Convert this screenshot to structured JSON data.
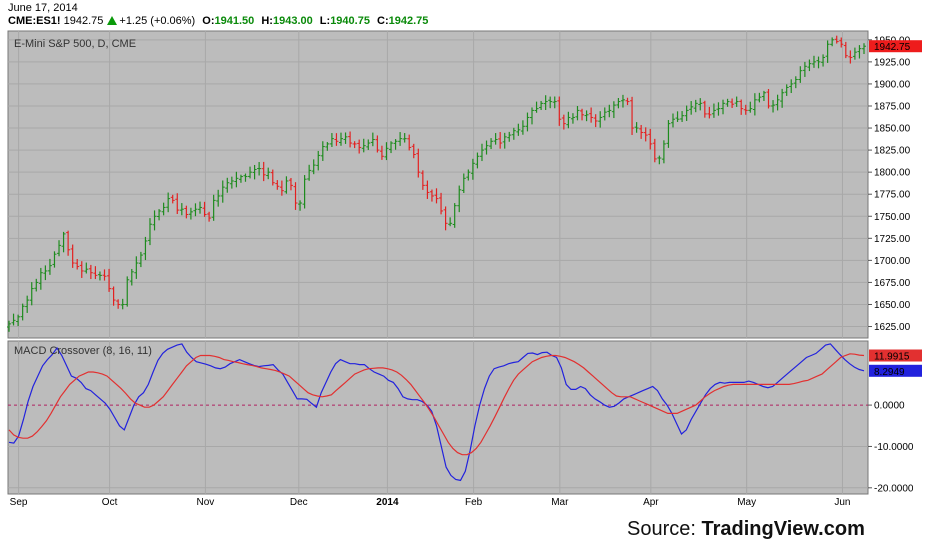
{
  "header": {
    "date": "June 17, 2014",
    "symbol": "CME:ES1!",
    "last": "1942.75",
    "change": "+1.25 (+0.06%)",
    "open_label": "O:",
    "open": "1941.50",
    "high_label": "H:",
    "high": "1943.00",
    "low_label": "L:",
    "low": "1940.75",
    "close_label": "C:",
    "close": "1942.75"
  },
  "source": {
    "prefix": "Source: ",
    "brand": "TradingView.com"
  },
  "colors": {
    "up": "#1e8b1e",
    "down": "#e32020",
    "macd": "#2222dd",
    "signal": "#e23030",
    "panel": "#bcbcbc",
    "grid": "#a8a8a8"
  },
  "chart_data": [
    {
      "type": "ohlc",
      "title": "E-Mini S&P 500, D, CME",
      "ylim": [
        1612,
        1960
      ],
      "y_ticks": [
        "1625.00",
        "1650.00",
        "1675.00",
        "1700.00",
        "1725.00",
        "1750.00",
        "1775.00",
        "1800.00",
        "1825.00",
        "1850.00",
        "1875.00",
        "1900.00",
        "1925.00",
        "1950.00"
      ],
      "last_value_label": "1942.75",
      "closes": [
        1628,
        1632,
        1636,
        1648,
        1655,
        1668,
        1675,
        1686,
        1688,
        1694,
        1707,
        1717,
        1730,
        1712,
        1697,
        1693,
        1688,
        1690,
        1686,
        1683,
        1683,
        1682,
        1668,
        1655,
        1650,
        1650,
        1678,
        1687,
        1697,
        1706,
        1722,
        1741,
        1750,
        1756,
        1760,
        1770,
        1768,
        1757,
        1758,
        1752,
        1755,
        1758,
        1760,
        1752,
        1748,
        1768,
        1773,
        1783,
        1788,
        1790,
        1793,
        1795,
        1795,
        1800,
        1803,
        1804,
        1797,
        1800,
        1788,
        1784,
        1779,
        1790,
        1785,
        1765,
        1765,
        1792,
        1802,
        1808,
        1819,
        1829,
        1832,
        1838,
        1835,
        1838,
        1840,
        1833,
        1832,
        1828,
        1830,
        1833,
        1837,
        1825,
        1818,
        1827,
        1833,
        1835,
        1838,
        1838,
        1828,
        1820,
        1800,
        1785,
        1777,
        1773,
        1770,
        1756,
        1742,
        1742,
        1762,
        1780,
        1793,
        1800,
        1810,
        1818,
        1825,
        1830,
        1835,
        1837,
        1833,
        1840,
        1842,
        1847,
        1848,
        1852,
        1862,
        1870,
        1872,
        1878,
        1880,
        1880,
        1880,
        1860,
        1855,
        1862,
        1862,
        1870,
        1865,
        1865,
        1862,
        1858,
        1862,
        1868,
        1870,
        1876,
        1880,
        1882,
        1880,
        1850,
        1850,
        1845,
        1842,
        1832,
        1815,
        1816,
        1832,
        1855,
        1860,
        1860,
        1864,
        1870,
        1874,
        1878,
        1878,
        1866,
        1865,
        1870,
        1872,
        1878,
        1880,
        1877,
        1880,
        1872,
        1870,
        1872,
        1882,
        1885,
        1890,
        1875,
        1876,
        1882,
        1890,
        1896,
        1900,
        1905,
        1915,
        1920,
        1923,
        1925,
        1925,
        1930,
        1945,
        1950,
        1948,
        1945,
        1932,
        1930,
        1936,
        1940,
        1942.75
      ],
      "notes": "Closes are read approximately from the price axis; bars are up (green) when the close is above the previous close, down (red) otherwise."
    },
    {
      "type": "line",
      "title": "MACD Crossover (8, 16, 11)",
      "ylim": [
        -21.5,
        15.5
      ],
      "y_ticks": [
        "-20.0000",
        "-10.0000",
        "0.0000"
      ],
      "zero_line": 0,
      "series": [
        {
          "label_value": "8.2949",
          "values": [
            -9,
            -9.2,
            -7.5,
            -3.5,
            1,
            4.5,
            7,
            9.5,
            11,
            12.2,
            13.8,
            12,
            9.5,
            7,
            6.5,
            5.5,
            4,
            3.5,
            2.5,
            1.5,
            0.5,
            -1,
            -3,
            -5,
            -6,
            -3,
            0,
            2,
            3,
            5,
            8,
            10.8,
            12.5,
            13.5,
            14,
            14.5,
            14.8,
            12.8,
            11.5,
            10.5,
            10.2,
            9.9,
            9.5,
            9,
            8.8,
            9.2,
            10,
            10.5,
            11,
            10.5,
            10,
            9.6,
            9.3,
            9.5,
            9.6,
            9.8,
            8.5,
            7.5,
            5.5,
            3.5,
            1.5,
            1.5,
            1.4,
            0.4,
            -0.5,
            3,
            5.5,
            8,
            10,
            11,
            10.5,
            10,
            10,
            9.8,
            9.8,
            8.8,
            8,
            7.5,
            7,
            6,
            5.5,
            4,
            2,
            1.5,
            1.3,
            1.3,
            0.9,
            0,
            -1.5,
            -5,
            -10,
            -15,
            -17,
            -18,
            -18.2,
            -16,
            -11,
            -5,
            0,
            4,
            7,
            8.8,
            9.2,
            9.5,
            10,
            10.3,
            10.5,
            11.5,
            12.5,
            12.6,
            12.2,
            12.7,
            12.8,
            12,
            11.5,
            9,
            5,
            3.8,
            3.8,
            4.5,
            4,
            2.5,
            1.5,
            0.8,
            0,
            -0.5,
            -0.3,
            0.5,
            1.5,
            2,
            2.5,
            3,
            3.5,
            4,
            4.5,
            3.5,
            1.5,
            0,
            -2,
            -4.5,
            -7,
            -6,
            -3.5,
            -1.5,
            0.5,
            2.5,
            4,
            5,
            5.5,
            5.3,
            5.5,
            5.5,
            5.5,
            5.5,
            5.8,
            5.5,
            5,
            4.5,
            4.2,
            4.5,
            5.5,
            6.5,
            7.5,
            8.5,
            9.5,
            10.5,
            11.5,
            12,
            12.5,
            13.5,
            14.5,
            14.8,
            13.5,
            12.2,
            11,
            10,
            9.2,
            8.6,
            8.2949
          ]
        },
        {
          "label_value": "11.9915",
          "values": [
            -6,
            -7.2,
            -7.8,
            -8,
            -8,
            -7.5,
            -6.5,
            -5.2,
            -3.8,
            -2,
            0,
            2,
            3.5,
            5,
            6,
            7,
            7.5,
            8,
            8,
            7.8,
            7.5,
            7,
            6,
            5,
            4,
            2.8,
            1.5,
            0.5,
            0,
            -0.5,
            -0.5,
            0,
            1,
            2,
            3.5,
            5,
            6.5,
            8,
            9.5,
            10.5,
            11.5,
            12,
            12,
            12,
            11.8,
            11.5,
            11,
            10.8,
            10.5,
            10.3,
            10,
            9.8,
            9.6,
            9.3,
            9,
            8.8,
            8.6,
            8.4,
            8,
            7.5,
            7,
            6,
            5,
            4,
            3,
            2.5,
            2.2,
            2,
            2.2,
            2.5,
            3.5,
            4.5,
            5.5,
            6.5,
            7.5,
            8,
            8.5,
            8.8,
            8.9,
            9,
            9,
            8.8,
            8.5,
            8,
            7.2,
            6.2,
            5,
            3.5,
            2,
            0.5,
            -1.2,
            -3,
            -5,
            -7,
            -9,
            -10.5,
            -11.5,
            -12,
            -12,
            -11.5,
            -10.5,
            -9,
            -7,
            -5,
            -2.8,
            -0.5,
            1.8,
            4,
            6,
            7.5,
            8.5,
            9.5,
            10.5,
            11,
            11.5,
            11.8,
            12,
            12,
            11.8,
            11.5,
            11,
            10.5,
            9.8,
            9,
            8,
            7,
            6,
            5,
            4,
            3,
            2.2,
            2,
            2,
            2,
            1.5,
            1,
            0.5,
            0,
            -0.5,
            -1,
            -1.5,
            -2,
            -2,
            -2,
            -1.5,
            -1,
            -0.5,
            0,
            1,
            2,
            2.8,
            3.5,
            4,
            4.5,
            4.8,
            5,
            5,
            5,
            5,
            5,
            5,
            5,
            5,
            5,
            5,
            5,
            5,
            5,
            5.2,
            5.5,
            5.8,
            6,
            6.5,
            7,
            7.5,
            8.5,
            9.5,
            10.5,
            11.5,
            12,
            12.4,
            12.3,
            12.1,
            11.9915
          ]
        }
      ]
    }
  ],
  "x_ticks": [
    "Sep",
    "Oct",
    "Nov",
    "Dec",
    "2014",
    "Feb",
    "Mar",
    "Apr",
    "May",
    "Jun"
  ]
}
